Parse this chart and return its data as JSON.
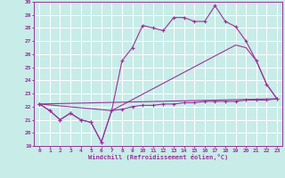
{
  "xlabel": "Windchill (Refroidissement éolien,°C)",
  "ylim": [
    19,
    30
  ],
  "xlim": [
    -0.5,
    23.5
  ],
  "yticks": [
    19,
    20,
    21,
    22,
    23,
    24,
    25,
    26,
    27,
    28,
    29,
    30
  ],
  "xticks": [
    0,
    1,
    2,
    3,
    4,
    5,
    6,
    7,
    8,
    9,
    10,
    11,
    12,
    13,
    14,
    15,
    16,
    17,
    18,
    19,
    20,
    21,
    22,
    23
  ],
  "bg_color": "#c8ece8",
  "line_color": "#993399",
  "grid_color": "#ffffff",
  "lines": [
    {
      "x": [
        0,
        1,
        2,
        3,
        4,
        5,
        6,
        7,
        8,
        9,
        10,
        11,
        12,
        13,
        14,
        15,
        16,
        17,
        18,
        19,
        20,
        21,
        22,
        23
      ],
      "y": [
        22.2,
        21.7,
        21.0,
        21.5,
        21.0,
        20.8,
        19.3,
        21.7,
        21.8,
        22.0,
        22.1,
        22.1,
        22.2,
        22.2,
        22.3,
        22.3,
        22.4,
        22.4,
        22.4,
        22.4,
        22.5,
        22.5,
        22.5,
        22.6
      ]
    },
    {
      "x": [
        0,
        23
      ],
      "y": [
        22.2,
        22.6
      ]
    },
    {
      "x": [
        0,
        7,
        19,
        20,
        21,
        22,
        23
      ],
      "y": [
        22.2,
        21.7,
        26.7,
        26.5,
        25.5,
        23.7,
        22.6
      ]
    },
    {
      "x": [
        0,
        1,
        2,
        3,
        4,
        5,
        6,
        7,
        8,
        9,
        10,
        11,
        12,
        13,
        14,
        15,
        16,
        17,
        18,
        19,
        20,
        21,
        22,
        23
      ],
      "y": [
        22.2,
        21.7,
        21.0,
        21.5,
        21.0,
        20.8,
        19.3,
        21.7,
        25.5,
        26.5,
        28.2,
        28.0,
        27.8,
        28.8,
        28.8,
        28.5,
        28.5,
        29.7,
        28.5,
        28.1,
        27.0,
        25.5,
        23.7,
        22.6
      ]
    }
  ]
}
